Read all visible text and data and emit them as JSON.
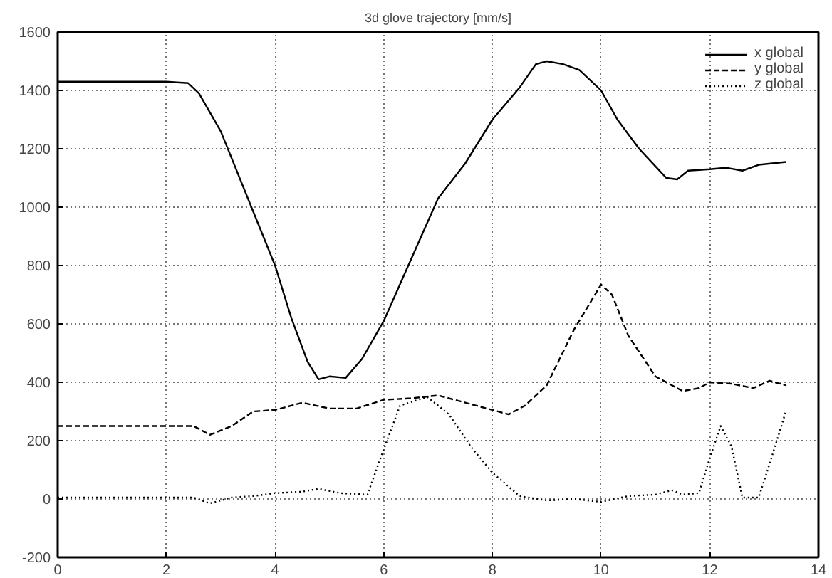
{
  "chart_data": {
    "type": "line",
    "title": "3d glove trajectory [mm/s]",
    "xlim": [
      0,
      14
    ],
    "xticks": [
      0,
      2,
      4,
      6,
      8,
      10,
      12,
      14
    ],
    "ylim": [
      -200,
      1600
    ],
    "yticks": [
      -200,
      0,
      200,
      400,
      600,
      800,
      1000,
      1200,
      1400,
      1600
    ],
    "grid": true,
    "legend": "top right",
    "marker": "none",
    "series": [
      {
        "name": "x global",
        "color": "#000000",
        "line_style": "solid",
        "x": [
          0,
          2,
          2.4,
          2.6,
          3,
          3.5,
          4,
          4.3,
          4.6,
          4.8,
          5,
          5.3,
          5.6,
          6,
          6.5,
          7,
          7.5,
          8,
          8.5,
          8.8,
          9,
          9.3,
          9.6,
          10,
          10.3,
          10.7,
          11,
          11.2,
          11.4,
          11.6,
          12,
          12.3,
          12.6,
          12.9,
          13.4
        ],
        "values": [
          1430,
          1430,
          1425,
          1390,
          1260,
          1030,
          800,
          620,
          470,
          410,
          420,
          415,
          480,
          610,
          820,
          1030,
          1150,
          1300,
          1410,
          1490,
          1500,
          1490,
          1470,
          1400,
          1300,
          1200,
          1140,
          1100,
          1095,
          1125,
          1130,
          1135,
          1125,
          1145,
          1155
        ]
      },
      {
        "name": "y global",
        "color": "#000000",
        "line_style": "dashed",
        "x": [
          0,
          2.5,
          2.8,
          3.2,
          3.6,
          4,
          4.5,
          5,
          5.5,
          6,
          6.5,
          7,
          7.5,
          8,
          8.3,
          8.6,
          9,
          9.5,
          10,
          10.2,
          10.5,
          11,
          11.5,
          11.8,
          12,
          12.4,
          12.8,
          13.1,
          13.4
        ],
        "values": [
          250,
          250,
          220,
          250,
          300,
          305,
          330,
          310,
          310,
          340,
          345,
          355,
          330,
          305,
          290,
          320,
          390,
          580,
          735,
          700,
          560,
          420,
          370,
          380,
          400,
          395,
          380,
          405,
          390
        ]
      },
      {
        "name": "z global",
        "color": "#000000",
        "line_style": "dotted",
        "x": [
          0,
          2.5,
          2.8,
          3.2,
          3.6,
          4,
          4.5,
          4.8,
          5.2,
          5.7,
          6,
          6.3,
          6.8,
          7.2,
          7.6,
          8,
          8.5,
          9,
          9.5,
          10,
          10.5,
          11,
          11.3,
          11.5,
          11.8,
          12,
          12.2,
          12.4,
          12.6,
          12.9,
          13.1,
          13.4
        ],
        "values": [
          5,
          5,
          -15,
          5,
          10,
          20,
          25,
          35,
          20,
          15,
          170,
          320,
          350,
          290,
          180,
          90,
          10,
          -5,
          0,
          -10,
          10,
          15,
          30,
          15,
          20,
          140,
          250,
          180,
          5,
          5,
          120,
          300
        ]
      }
    ]
  }
}
